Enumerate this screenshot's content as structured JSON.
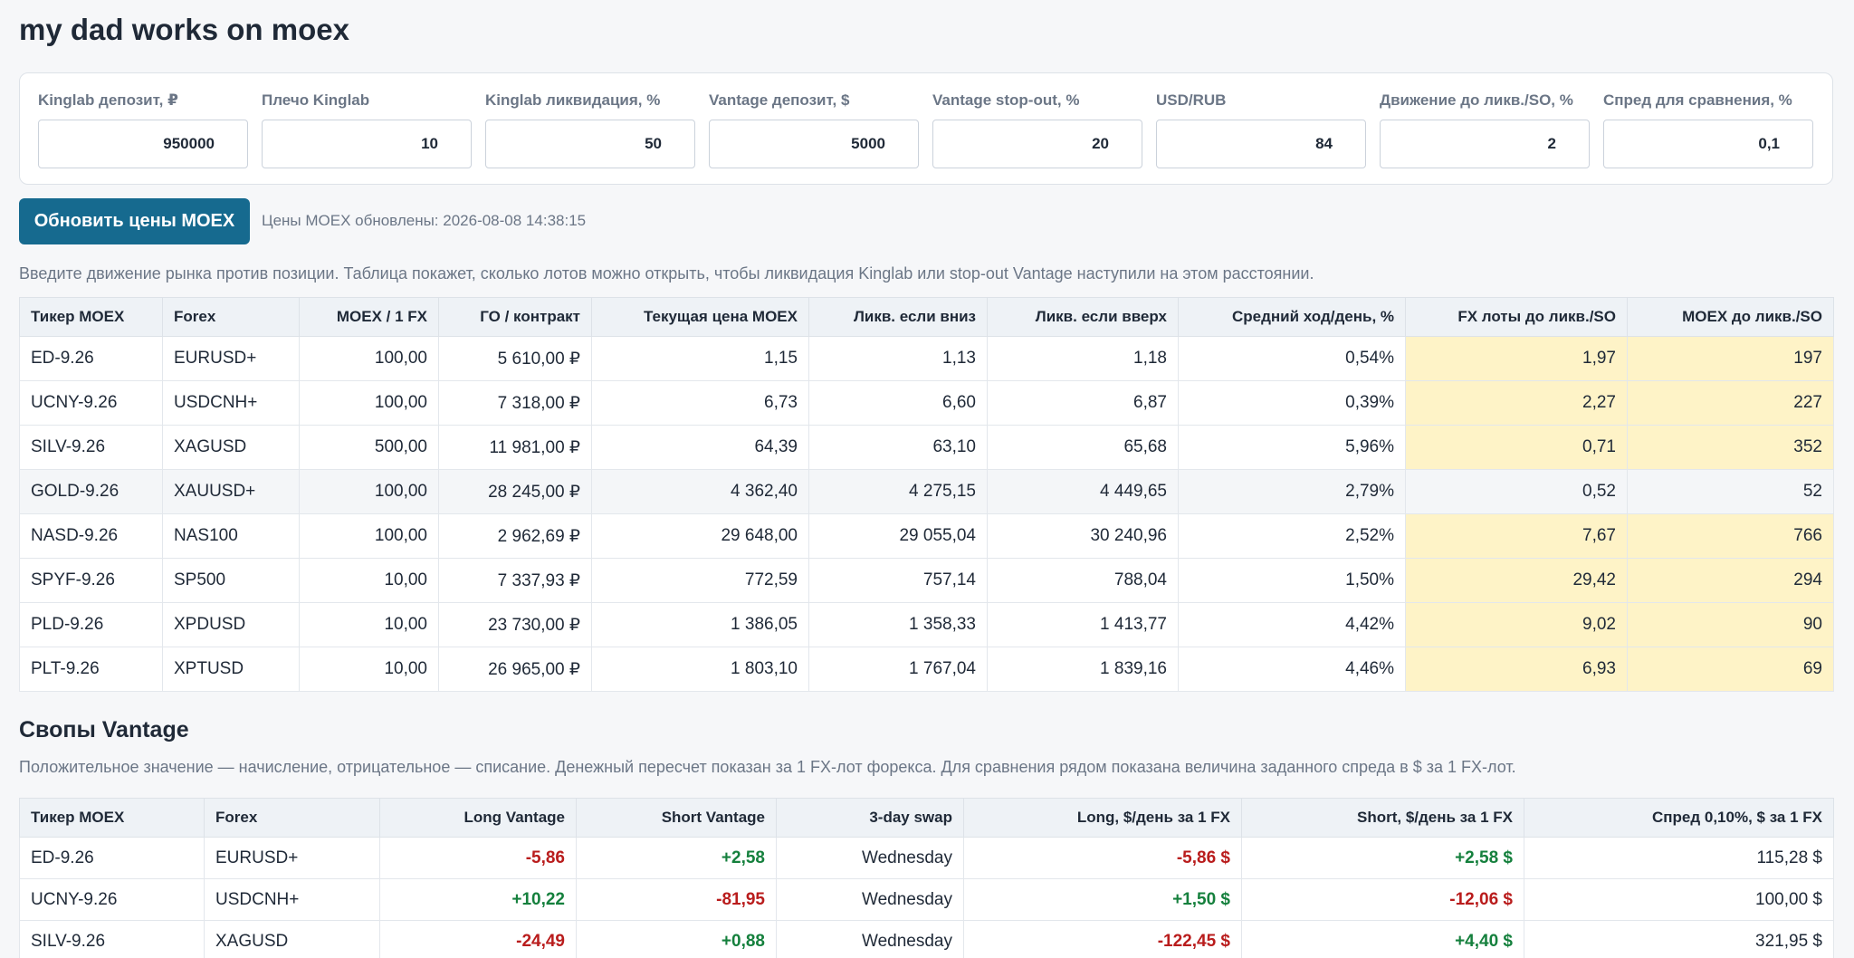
{
  "title": "my dad works on moex",
  "params": [
    {
      "label": "Kinglab депозит, ₽",
      "value": "950000"
    },
    {
      "label": "Плечо Kinglab",
      "value": "10"
    },
    {
      "label": "Kinglab ликвидация, %",
      "value": "50"
    },
    {
      "label": "Vantage депозит, $",
      "value": "5000"
    },
    {
      "label": "Vantage stop-out, %",
      "value": "20"
    },
    {
      "label": "USD/RUB",
      "value": "84"
    },
    {
      "label": "Движение до ликв./SO, %",
      "value": "2"
    },
    {
      "label": "Спред для сравнения, %",
      "value": "0,1"
    }
  ],
  "refresh_button": "Обновить цены MOEX",
  "status": "Цены MOEX обновлены: 2026-08-08 14:38:15",
  "note1": "Введите движение рынка против позиции. Таблица покажет, сколько лотов можно открыть, чтобы ликвидация Kinglab или stop-out Vantage наступили на этом расстоянии.",
  "table1": {
    "headers": [
      "Тикер MOEX",
      "Forex",
      "MOEX / 1 FX",
      "ГО / контракт",
      "Текущая цена MOEX",
      "Ликв. если вниз",
      "Ликв. если вверх",
      "Средний ход/день, %",
      "FX лоты до ликв./SO",
      "MOEX до ликв./SO"
    ],
    "rows": [
      [
        "ED-9.26",
        "EURUSD+",
        "100,00",
        "5 610,00 ₽",
        "1,15",
        "1,13",
        "1,18",
        "0,54%",
        "1,97",
        "197"
      ],
      [
        "UCNY-9.26",
        "USDCNH+",
        "100,00",
        "7 318,00 ₽",
        "6,73",
        "6,60",
        "6,87",
        "0,39%",
        "2,27",
        "227"
      ],
      [
        "SILV-9.26",
        "XAGUSD",
        "500,00",
        "11 981,00 ₽",
        "64,39",
        "63,10",
        "65,68",
        "5,96%",
        "0,71",
        "352"
      ],
      [
        "GOLD-9.26",
        "XAUUSD+",
        "100,00",
        "28 245,00 ₽",
        "4 362,40",
        "4 275,15",
        "4 449,65",
        "2,79%",
        "0,52",
        "52"
      ],
      [
        "NASD-9.26",
        "NAS100",
        "100,00",
        "2 962,69 ₽",
        "29 648,00",
        "29 055,04",
        "30 240,96",
        "2,52%",
        "7,67",
        "766"
      ],
      [
        "SPYF-9.26",
        "SP500",
        "10,00",
        "7 337,93 ₽",
        "772,59",
        "757,14",
        "788,04",
        "1,50%",
        "29,42",
        "294"
      ],
      [
        "PLD-9.26",
        "XPDUSD",
        "10,00",
        "23 730,00 ₽",
        "1 386,05",
        "1 358,33",
        "1 413,77",
        "4,42%",
        "9,02",
        "90"
      ],
      [
        "PLT-9.26",
        "XPTUSD",
        "10,00",
        "26 965,00 ₽",
        "1 803,10",
        "1 767,04",
        "1 839,16",
        "4,46%",
        "6,93",
        "69"
      ]
    ]
  },
  "swaps_title": "Свопы Vantage",
  "note2": "Положительное значение — начисление, отрицательное — списание. Денежный пересчет показан за 1 FX-лот форекса. Для сравнения рядом показана величина заданного спреда в $ за 1 FX-лот.",
  "table2": {
    "headers": [
      "Тикер MOEX",
      "Forex",
      "Long Vantage",
      "Short Vantage",
      "3-day swap",
      "Long, $/день за 1 FX",
      "Short, $/день за 1 FX",
      "Спред 0,10%, $ за 1 FX"
    ],
    "rows": [
      [
        "ED-9.26",
        "EURUSD+",
        "-5,86",
        "+2,58",
        "Wednesday",
        "-5,86 $",
        "+2,58 $",
        "115,28 $"
      ],
      [
        "UCNY-9.26",
        "USDCNH+",
        "+10,22",
        "-81,95",
        "Wednesday",
        "+1,50 $",
        "-12,06 $",
        "100,00 $"
      ],
      [
        "SILV-9.26",
        "XAGUSD",
        "-24,49",
        "+0,88",
        "Wednesday",
        "-122,45 $",
        "+4,40 $",
        "321,95 $"
      ]
    ]
  },
  "colors": {
    "accent": "#166a8f",
    "highlight": "#fef3c7",
    "positive": "#15803d",
    "negative": "#b91c1c"
  }
}
